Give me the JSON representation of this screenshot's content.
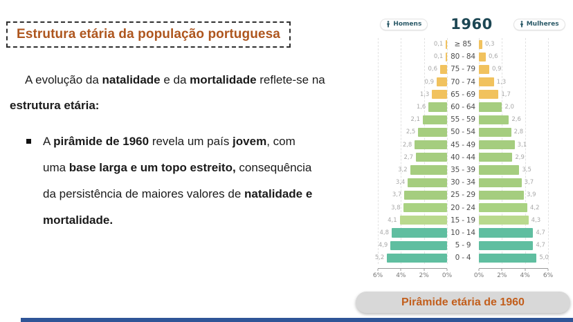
{
  "slide": {
    "title": "Estrutura etária da população portuguesa",
    "intro_segments": [
      {
        "t": "A evolução da ",
        "b": false
      },
      {
        "t": "natalidade",
        "b": true
      },
      {
        "t": " e da ",
        "b": false
      },
      {
        "t": "mortalidade",
        "b": true
      },
      {
        "t": " reflete-se na",
        "b": false
      },
      {
        "br": true
      },
      {
        "t": "estrutura etária:",
        "b": true
      }
    ],
    "bullet_segments": [
      {
        "t": "A ",
        "b": false
      },
      {
        "t": "pirâmide de 1960",
        "b": true
      },
      {
        "t": " revela um país ",
        "b": false
      },
      {
        "t": "jovem",
        "b": true
      },
      {
        "t": ", com",
        "b": false
      },
      {
        "br": true
      },
      {
        "t": "uma ",
        "b": false
      },
      {
        "t": "base larga e um topo estreito,",
        "b": true
      },
      {
        "t": " consequência",
        "b": false
      },
      {
        "br": true
      },
      {
        "t": "da persistência de maiores valores de ",
        "b": false
      },
      {
        "t": "natalidade e",
        "b": true
      },
      {
        "br": true
      },
      {
        "t": "mortalidade.",
        "b": true
      }
    ],
    "caption": "Pirâmide etária de 1960",
    "title_color": "#AE561E",
    "caption_color": "#C25E1C",
    "bottom_bar_color": "#2F5597"
  },
  "chart_data": {
    "type": "bar",
    "subtype": "population-pyramid",
    "title": "1960",
    "legend": [
      {
        "label": "Homens",
        "position": "left"
      },
      {
        "label": "Mulheres",
        "position": "right"
      }
    ],
    "categories": [
      "≥ 85",
      "80 - 84",
      "75 - 79",
      "70 - 74",
      "65 - 69",
      "60 - 64",
      "55 - 59",
      "50 - 54",
      "45 - 49",
      "40 - 44",
      "35 - 39",
      "30 - 34",
      "25 - 29",
      "20 - 24",
      "15 - 19",
      "10 - 14",
      "5 - 9",
      "0 - 4"
    ],
    "series": [
      {
        "name": "Homens",
        "side": "left",
        "values": [
          0.1,
          0.1,
          0.6,
          0.9,
          1.3,
          1.6,
          2.1,
          2.5,
          2.8,
          2.7,
          3.2,
          3.4,
          3.7,
          3.8,
          4.1,
          4.8,
          4.9,
          5.2
        ],
        "labels": [
          "0,1",
          "0,1",
          "0,6",
          "0,9",
          "1,3",
          "1,6",
          "2,1",
          "2,5",
          "2,8",
          "2,7",
          "3,2",
          "3,4",
          "3,7",
          "3,8",
          "4,1",
          "4,8",
          "4,9",
          "5,2"
        ]
      },
      {
        "name": "Mulheres",
        "side": "right",
        "values": [
          0.3,
          0.6,
          0.9,
          1.3,
          1.7,
          2.0,
          2.6,
          2.8,
          3.1,
          2.9,
          3.5,
          3.7,
          3.9,
          4.2,
          4.3,
          4.7,
          4.7,
          5.0
        ],
        "labels": [
          "0,3",
          "0,6",
          "0,9",
          "1,3",
          "1,7",
          "2,0",
          "2,6",
          "2,8",
          "3,1",
          "2,9",
          "3,5",
          "3,7",
          "3,9",
          "4,2",
          "4,3",
          "4,7",
          "4,7",
          "5,0"
        ]
      }
    ],
    "xmax": 6,
    "axis_left_labels": [
      "6%",
      "4%",
      "2%",
      "0%"
    ],
    "axis_right_labels": [
      "0%",
      "2%",
      "4%",
      "6%"
    ],
    "row_colors": [
      "#F1C25E",
      "#F1C25E",
      "#F1C25E",
      "#F1C25E",
      "#F1C25E",
      "#A5CD7F",
      "#A5CD7F",
      "#A5CD7F",
      "#A5CD7F",
      "#A5CD7F",
      "#A5CD7F",
      "#A5CD7F",
      "#A5CD7F",
      "#A9D282",
      "#B9D98D",
      "#5FBEA0",
      "#5FBEA0",
      "#5FBEA0"
    ],
    "grid": "dashed-vertical",
    "value_label_color": "#A8A8A8",
    "age_label_color": "#4D4D4D",
    "header_color": "#1C4653",
    "legend_color": "#2B5A68"
  }
}
